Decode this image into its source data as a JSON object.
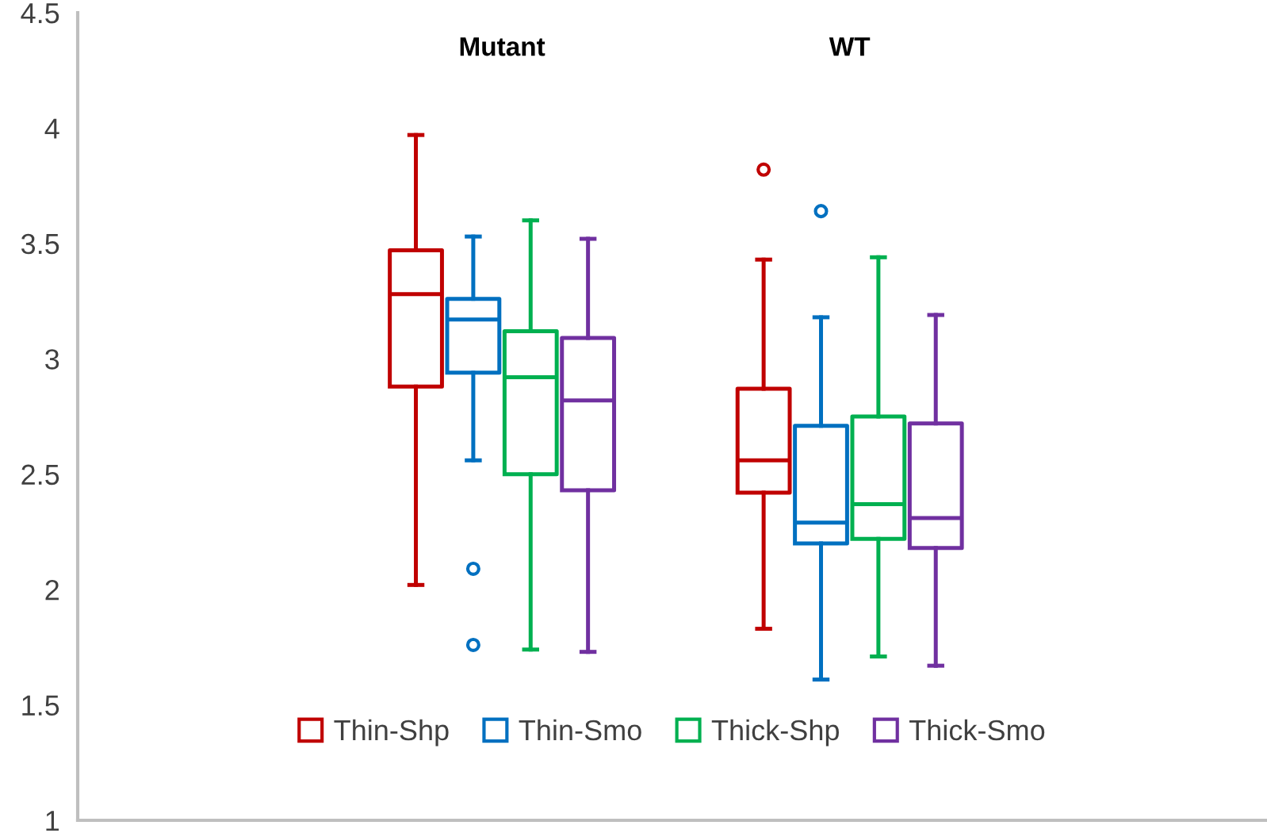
{
  "chart_data": {
    "type": "box",
    "categories": [
      "Mutant",
      "WT"
    ],
    "series": [
      {
        "name": "Thin-Shp",
        "color": "#c00000",
        "boxes": [
          {
            "low": 2.02,
            "q1": 2.88,
            "median": 3.28,
            "q3": 3.47,
            "high": 3.97
          },
          {
            "low": 1.83,
            "q1": 2.42,
            "median": 2.56,
            "q3": 2.87,
            "high": 3.43,
            "outliers": [
              3.82
            ]
          }
        ]
      },
      {
        "name": "Thin-Smo",
        "color": "#0070c0",
        "boxes": [
          {
            "low": 2.56,
            "q1": 2.94,
            "median": 3.17,
            "q3": 3.26,
            "high": 3.53,
            "outliers": [
              2.09,
              1.76
            ]
          },
          {
            "low": 1.61,
            "q1": 2.2,
            "median": 2.29,
            "q3": 2.71,
            "high": 3.18,
            "outliers": [
              3.64
            ]
          }
        ]
      },
      {
        "name": "Thick-Shp",
        "color": "#00b050",
        "boxes": [
          {
            "low": 1.74,
            "q1": 2.5,
            "median": 2.92,
            "q3": 3.12,
            "high": 3.6
          },
          {
            "low": 1.71,
            "q1": 2.22,
            "median": 2.37,
            "q3": 2.75,
            "high": 3.44
          }
        ]
      },
      {
        "name": "Thick-Smo",
        "color": "#7030a0",
        "boxes": [
          {
            "low": 1.73,
            "q1": 2.43,
            "median": 2.82,
            "q3": 3.09,
            "high": 3.52
          },
          {
            "low": 1.67,
            "q1": 2.18,
            "median": 2.31,
            "q3": 2.72,
            "high": 3.19
          }
        ]
      }
    ],
    "ylim": [
      1,
      4.5
    ],
    "yticks": [
      1,
      1.5,
      2,
      2.5,
      3,
      3.5,
      4,
      4.5
    ],
    "grid": false,
    "legend": "bottom"
  }
}
